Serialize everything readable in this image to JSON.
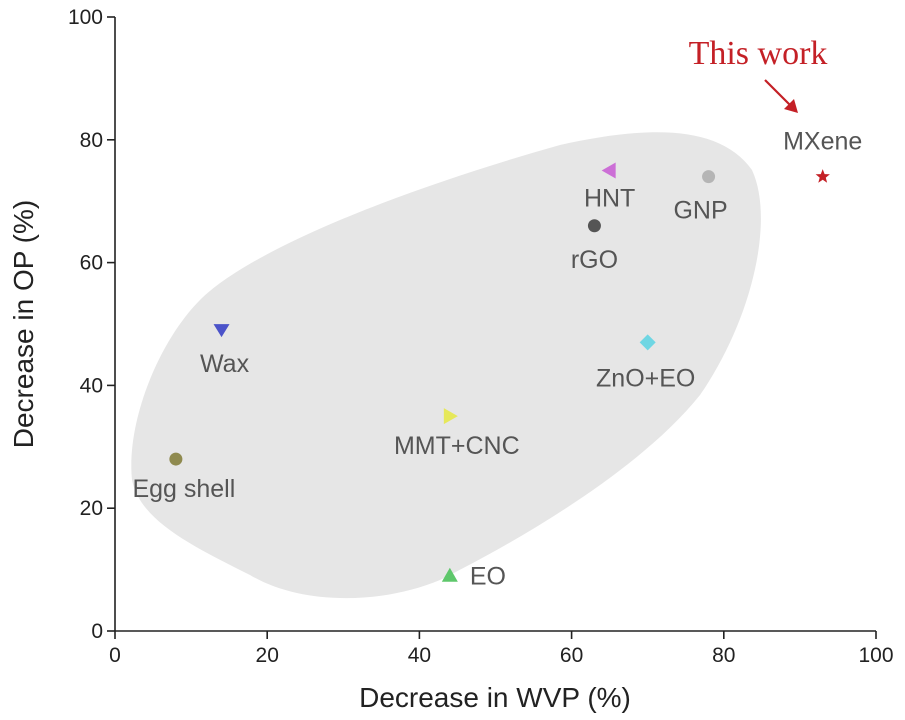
{
  "chart_data": {
    "type": "scatter",
    "title": "",
    "xlabel": "Decrease in WVP (%)",
    "ylabel": "Decrease in OP (%)",
    "xlim": [
      0,
      100
    ],
    "ylim": [
      0,
      100
    ],
    "xticks": [
      0,
      20,
      40,
      60,
      80,
      100
    ],
    "yticks": [
      0,
      20,
      40,
      60,
      80,
      100
    ],
    "grid": false,
    "points": [
      {
        "label": "Egg shell",
        "x": 8,
        "y": 28,
        "marker": "circle",
        "color": "#8f8a4f",
        "label_color": "#555555"
      },
      {
        "label": "Wax",
        "x": 14,
        "y": 49,
        "marker": "triangle-down",
        "color": "#4b53c9",
        "label_color": "#555555"
      },
      {
        "label": "MMT+CNC",
        "x": 44,
        "y": 35,
        "marker": "triangle-right",
        "color": "#e6e85a",
        "label_color": "#555555"
      },
      {
        "label": "EO",
        "x": 44,
        "y": 9,
        "marker": "triangle-up",
        "color": "#5ec76b",
        "label_color": "#555555"
      },
      {
        "label": "rGO",
        "x": 63,
        "y": 66,
        "marker": "circle",
        "color": "#555555",
        "label_color": "#555555"
      },
      {
        "label": "HNT",
        "x": 65,
        "y": 75,
        "marker": "triangle-left",
        "color": "#cc6fd6",
        "label_color": "#555555"
      },
      {
        "label": "ZnO+EO",
        "x": 70,
        "y": 47,
        "marker": "diamond",
        "color": "#6fd6e3",
        "label_color": "#555555"
      },
      {
        "label": "GNP",
        "x": 78,
        "y": 74,
        "marker": "circle",
        "color": "#b5b5b5",
        "label_color": "#555555"
      },
      {
        "label": "MXene",
        "x": 93,
        "y": 74,
        "marker": "star",
        "color": "#c42026",
        "label_color": "#111111"
      }
    ],
    "region_color": "#e6e6e6",
    "annotation": {
      "text": "This work",
      "color": "#c42026"
    }
  }
}
